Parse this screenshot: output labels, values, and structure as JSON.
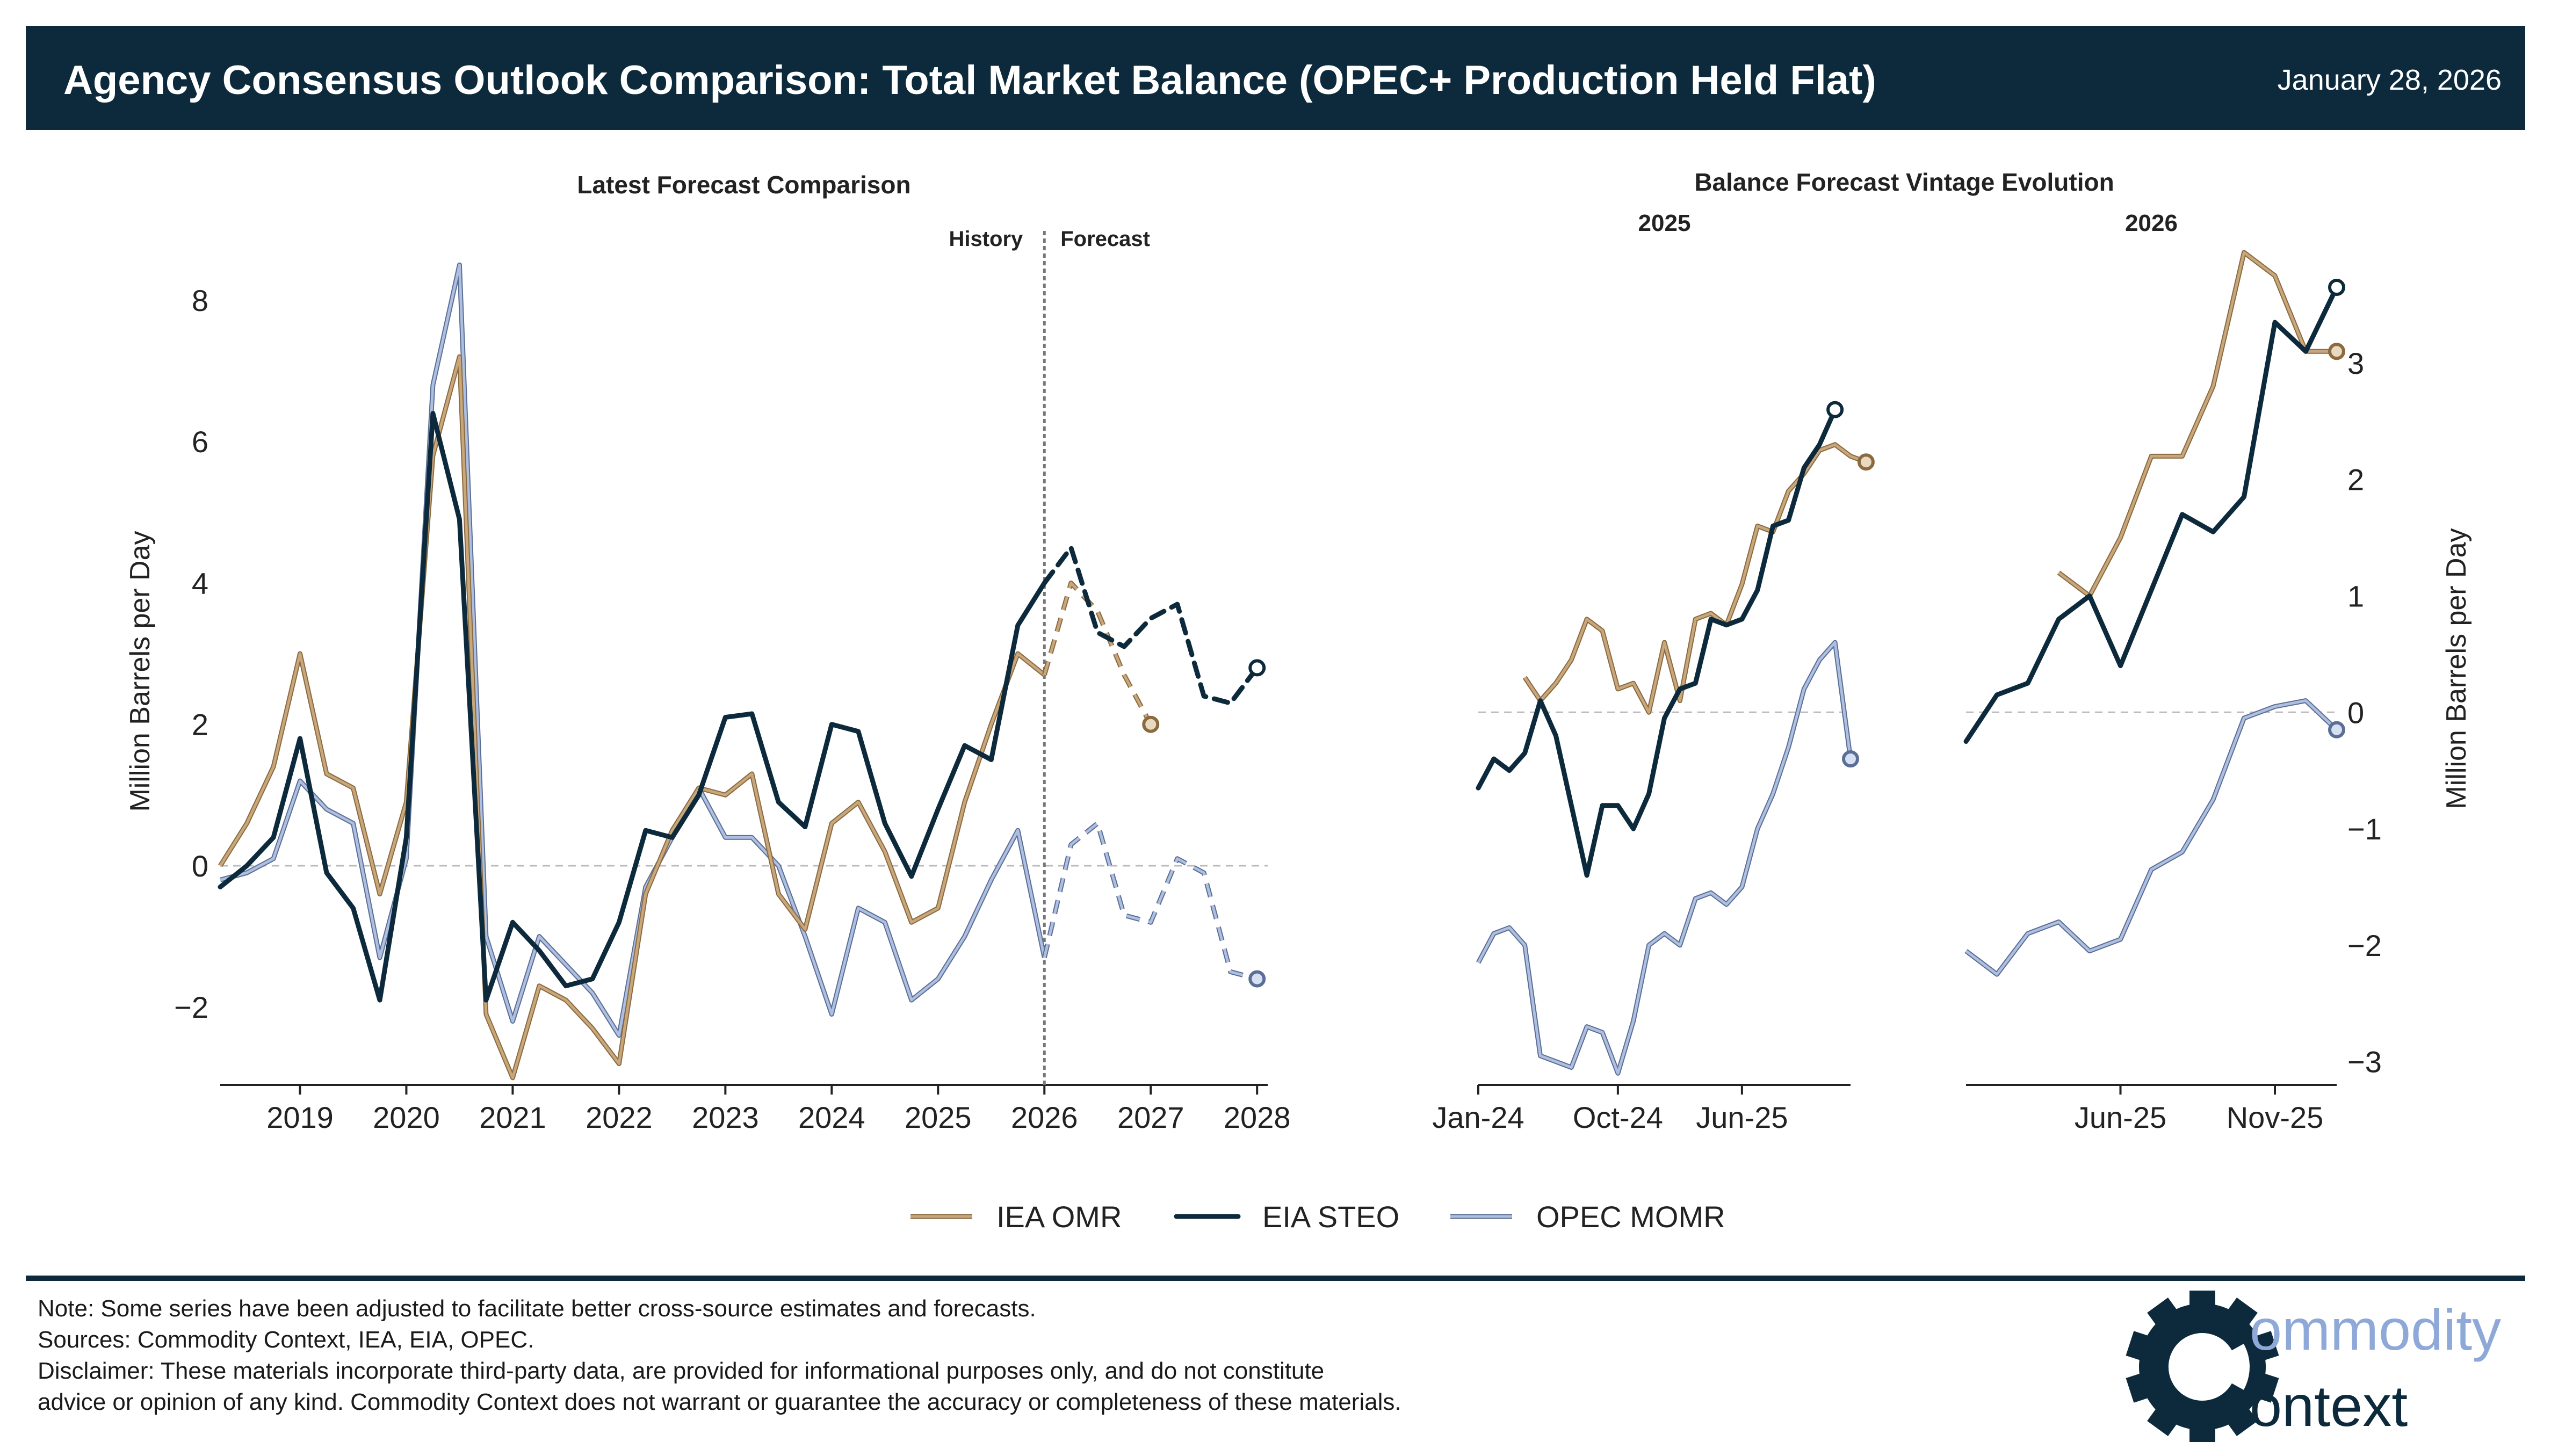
{
  "header": {
    "title": "Agency Consensus Outlook Comparison: Total Market Balance (OPEC+ Production Held Flat)",
    "date": "January 28, 2026"
  },
  "colors": {
    "header_bg": "#0c2a3c",
    "iea": "#c8a77c",
    "iea_edge": "#8a6a3e",
    "eia": "#0c2a3c",
    "opec": "#aebfe0",
    "opec_edge": "#5b6e96",
    "zero_line": "#bcbcbc",
    "logo_gear": "#0c2a3c",
    "logo_text": "#8ea8d8"
  },
  "legend": [
    {
      "name": "IEA OMR",
      "key": "iea"
    },
    {
      "name": "EIA STEO",
      "key": "eia"
    },
    {
      "name": "OPEC MOMR",
      "key": "opec"
    }
  ],
  "chart_data": [
    {
      "type": "line",
      "id": "main",
      "title": "Latest Forecast Comparison",
      "ylabel": "Million Barrels per Day",
      "xlim": [
        2018.25,
        2028.1
      ],
      "ylim": [
        -3.1,
        8.6
      ],
      "xticks": [
        2019,
        2020,
        2021,
        2022,
        2023,
        2024,
        2025,
        2026,
        2027,
        2028
      ],
      "yticks": [
        -2,
        0,
        2,
        4,
        6,
        8
      ],
      "divider": {
        "x": 2026.0,
        "left_label": "History",
        "right_label": "Forecast"
      },
      "series": [
        {
          "name": "IEA OMR",
          "key": "iea",
          "history_x": [
            2018.25,
            2018.5,
            2018.75,
            2019.0,
            2019.25,
            2019.5,
            2019.75,
            2020.0,
            2020.25,
            2020.5,
            2020.75,
            2021.0,
            2021.25,
            2021.5,
            2021.75,
            2022.0,
            2022.25,
            2022.5,
            2022.75,
            2023.0,
            2023.25,
            2023.5,
            2023.75,
            2024.0,
            2024.25,
            2024.5,
            2024.75,
            2025.0,
            2025.25,
            2025.5,
            2025.75,
            2026.0
          ],
          "history_y": [
            0.0,
            0.6,
            1.4,
            3.0,
            1.3,
            1.1,
            -0.4,
            0.9,
            5.8,
            7.2,
            -2.1,
            -3.0,
            -1.7,
            -1.9,
            -2.3,
            -2.8,
            -0.4,
            0.5,
            1.1,
            1.0,
            1.3,
            -0.4,
            -0.9,
            0.6,
            0.9,
            0.2,
            -0.8,
            -0.6,
            0.9,
            2.0,
            3.0,
            2.7
          ],
          "forecast_x": [
            2026.0,
            2026.25,
            2026.5,
            2026.75,
            2027.0
          ],
          "forecast_y": [
            2.7,
            4.0,
            3.6,
            2.7,
            2.0
          ],
          "end": [
            2027.0,
            2.0
          ]
        },
        {
          "name": "EIA STEO",
          "key": "eia",
          "history_x": [
            2018.25,
            2018.5,
            2018.75,
            2019.0,
            2019.25,
            2019.5,
            2019.75,
            2020.0,
            2020.25,
            2020.5,
            2020.75,
            2021.0,
            2021.25,
            2021.5,
            2021.75,
            2022.0,
            2022.25,
            2022.5,
            2022.75,
            2023.0,
            2023.25,
            2023.5,
            2023.75,
            2024.0,
            2024.25,
            2024.5,
            2024.75,
            2025.0,
            2025.25,
            2025.5,
            2025.75,
            2026.0
          ],
          "history_y": [
            -0.3,
            0.0,
            0.4,
            1.8,
            -0.1,
            -0.6,
            -1.9,
            0.4,
            6.4,
            4.9,
            -1.9,
            -0.8,
            -1.2,
            -1.7,
            -1.6,
            -0.8,
            0.5,
            0.4,
            1.0,
            2.1,
            2.15,
            0.9,
            0.55,
            2.0,
            1.9,
            0.6,
            -0.15,
            0.8,
            1.7,
            1.5,
            3.4,
            4.0
          ],
          "forecast_x": [
            2026.0,
            2026.25,
            2026.5,
            2026.75,
            2027.0,
            2027.25,
            2027.5,
            2027.75,
            2028.0
          ],
          "forecast_y": [
            4.0,
            4.5,
            3.3,
            3.1,
            3.5,
            3.7,
            2.4,
            2.3,
            2.8
          ],
          "end": [
            2028.0,
            2.8
          ]
        },
        {
          "name": "OPEC MOMR",
          "key": "opec",
          "history_x": [
            2018.25,
            2018.5,
            2018.75,
            2019.0,
            2019.25,
            2019.5,
            2019.75,
            2020.0,
            2020.25,
            2020.5,
            2020.75,
            2021.0,
            2021.25,
            2021.5,
            2021.75,
            2022.0,
            2022.25,
            2022.5,
            2022.75,
            2023.0,
            2023.25,
            2023.5,
            2023.75,
            2024.0,
            2024.25,
            2024.5,
            2024.75,
            2025.0,
            2025.25,
            2025.5,
            2025.75,
            2026.0
          ],
          "history_y": [
            -0.2,
            -0.1,
            0.1,
            1.2,
            0.8,
            0.6,
            -1.3,
            0.1,
            6.8,
            8.5,
            -1.0,
            -2.2,
            -1.0,
            -1.4,
            -1.8,
            -2.4,
            -0.3,
            0.4,
            1.1,
            0.4,
            0.4,
            0.0,
            -1.0,
            -2.1,
            -0.6,
            -0.8,
            -1.9,
            -1.6,
            -1.0,
            -0.2,
            0.5,
            -1.3
          ],
          "forecast_x": [
            2026.0,
            2026.25,
            2026.5,
            2026.75,
            2027.0,
            2027.25,
            2027.5,
            2027.75,
            2028.0
          ],
          "forecast_y": [
            -1.3,
            0.3,
            0.6,
            -0.7,
            -0.8,
            0.1,
            -0.1,
            -1.5,
            -1.6
          ],
          "end": [
            2028.0,
            -1.6
          ]
        }
      ]
    },
    {
      "type": "line",
      "id": "vintage-2025",
      "suptitle": "Balance Forecast Vintage Evolution",
      "title": "2025",
      "xticks": [
        {
          "label": "Jan-24",
          "i": 0
        },
        {
          "label": "Oct-24",
          "i": 9
        },
        {
          "label": "Jun-25",
          "i": 17
        }
      ],
      "n": 25,
      "series": [
        {
          "name": "IEA OMR",
          "key": "iea",
          "start": 3,
          "values": [
            0.3,
            0.1,
            0.25,
            0.45,
            0.8,
            0.7,
            0.2,
            0.25,
            0.0,
            0.6,
            0.1,
            0.8,
            0.85,
            0.75,
            1.1,
            1.6,
            1.55,
            1.9,
            2.05,
            2.25,
            2.3,
            2.2,
            2.15
          ]
        },
        {
          "name": "EIA STEO",
          "key": "eia",
          "start": 0,
          "values": [
            -0.65,
            -0.4,
            -0.5,
            -0.35,
            0.1,
            -0.2,
            -0.8,
            -1.4,
            -0.8,
            -0.8,
            -1.0,
            -0.7,
            -0.05,
            0.2,
            0.25,
            0.8,
            0.75,
            0.8,
            1.05,
            1.6,
            1.65,
            2.1,
            2.3,
            2.6
          ]
        },
        {
          "name": "OPEC MOMR",
          "key": "opec",
          "start": 0,
          "values": [
            -2.15,
            -1.9,
            -1.85,
            -2.0,
            -2.95,
            -3.0,
            -3.05,
            -2.7,
            -2.75,
            -3.1,
            -2.65,
            -2.0,
            -1.9,
            -2.0,
            -1.6,
            -1.55,
            -1.65,
            -1.5,
            -1.0,
            -0.7,
            -0.3,
            0.2,
            0.45,
            0.6,
            -0.4
          ]
        }
      ]
    },
    {
      "type": "line",
      "id": "vintage-2026",
      "title": "2026",
      "ylabel": "Million Barrels per Day",
      "ylim": [
        -3.2,
        3.95
      ],
      "yticks": [
        -3,
        -2,
        -1,
        0,
        1,
        2,
        3
      ],
      "xticks": [
        {
          "label": "Jun-25",
          "i": 5
        },
        {
          "label": "Nov-25",
          "i": 10
        }
      ],
      "n": 13,
      "series": [
        {
          "name": "IEA OMR",
          "key": "iea",
          "start": 3,
          "values": [
            1.2,
            1.0,
            1.5,
            2.2,
            2.2,
            2.8,
            3.95,
            3.75,
            3.1,
            3.1
          ]
        },
        {
          "name": "EIA STEO",
          "key": "eia",
          "start": 0,
          "values": [
            -0.25,
            0.15,
            0.25,
            0.8,
            1.0,
            0.4,
            1.05,
            1.7,
            1.55,
            1.85,
            3.35,
            3.1,
            3.65
          ]
        },
        {
          "name": "OPEC MOMR",
          "key": "opec",
          "start": 0,
          "values": [
            -2.05,
            -2.25,
            -1.9,
            -1.8,
            -2.05,
            -1.95,
            -1.35,
            -1.2,
            -0.75,
            -0.05,
            0.05,
            0.1,
            -0.15
          ]
        }
      ]
    }
  ],
  "footer": {
    "note": "Note: Some series have been adjusted to facilitate better cross-source estimates and forecasts.",
    "sources": "Sources: Commodity Context, IEA, EIA, OPEC.",
    "disclaimer_1": "Disclaimer: These materials incorporate third-party data, are provided for informational purposes only, and do not constitute",
    "disclaimer_2": "advice or opinion of any kind. Commodity Context does not warrant or guarantee the accuracy or completeness of these materials."
  },
  "logo": {
    "line1": "ommodity",
    "line2": "ontext"
  }
}
